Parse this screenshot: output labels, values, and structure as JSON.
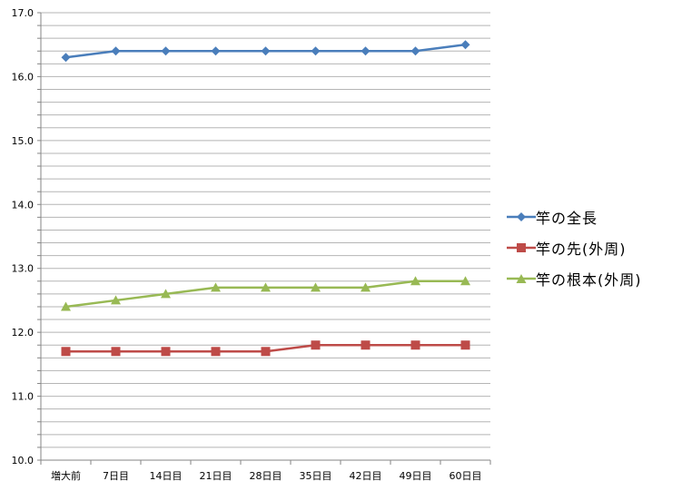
{
  "chart_data": {
    "type": "line",
    "categories": [
      "増大前",
      "7日目",
      "14日目",
      "21日目",
      "28日目",
      "35日目",
      "42日目",
      "49日目",
      "60日目"
    ],
    "ylim": [
      10.0,
      17.0
    ],
    "yticks": [
      "10.0",
      "11.0",
      "12.0",
      "13.0",
      "14.0",
      "15.0",
      "16.0",
      "17.0"
    ],
    "grid": "on",
    "grid_step": 0.2,
    "legend_position": "right",
    "series": [
      {
        "name": "竿の全長",
        "color": "#4a7ebb",
        "marker": "diamond",
        "values": [
          16.3,
          16.4,
          16.4,
          16.4,
          16.4,
          16.4,
          16.4,
          16.4,
          16.5
        ]
      },
      {
        "name": "竿の先(外周)",
        "color": "#be4b48",
        "marker": "square",
        "values": [
          11.7,
          11.7,
          11.7,
          11.7,
          11.7,
          11.8,
          11.8,
          11.8,
          11.8
        ]
      },
      {
        "name": "竿の根本(外周)",
        "color": "#98b954",
        "marker": "triangle",
        "values": [
          12.4,
          12.5,
          12.6,
          12.7,
          12.7,
          12.7,
          12.7,
          12.8,
          12.8
        ]
      }
    ]
  }
}
